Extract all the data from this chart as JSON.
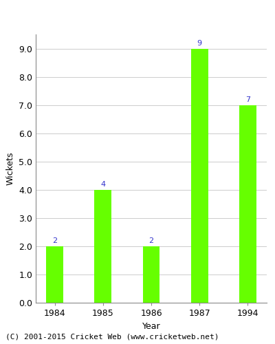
{
  "categories": [
    "1984",
    "1985",
    "1986",
    "1987",
    "1994"
  ],
  "values": [
    2,
    4,
    2,
    9,
    7
  ],
  "bar_color": "#66ff00",
  "label_color": "#3333cc",
  "xlabel": "Year",
  "ylabel": "Wickets",
  "ylim": [
    0,
    9.5
  ],
  "yticks": [
    0.0,
    1.0,
    2.0,
    3.0,
    4.0,
    5.0,
    6.0,
    7.0,
    8.0,
    9.0
  ],
  "footer": "(C) 2001-2015 Cricket Web (www.cricketweb.net)",
  "label_fontsize": 8,
  "axis_fontsize": 9,
  "tick_fontsize": 9,
  "footer_fontsize": 8,
  "bar_width": 0.35
}
